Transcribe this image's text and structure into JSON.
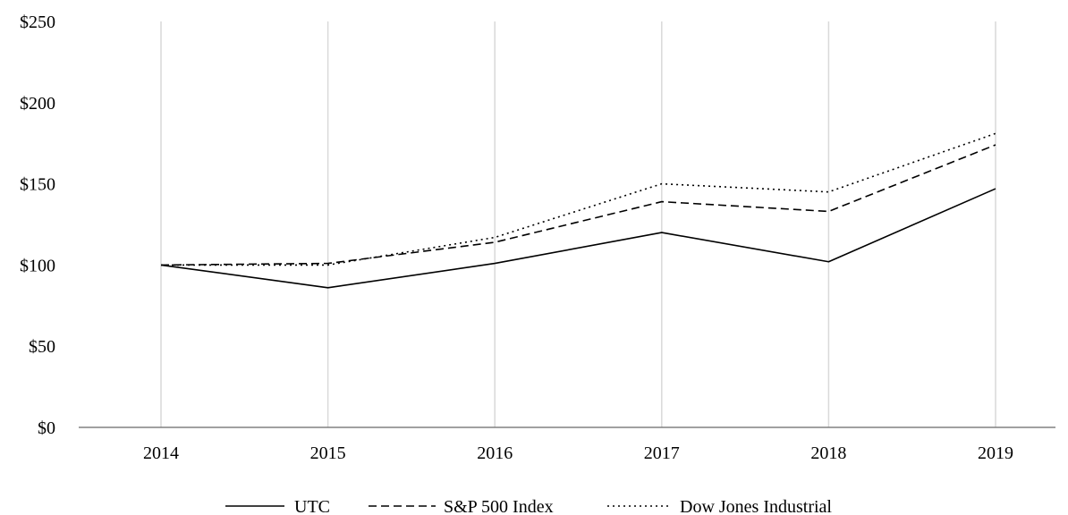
{
  "chart_data": {
    "type": "line",
    "title": "",
    "xlabel": "",
    "ylabel": "",
    "categories": [
      "2014",
      "2015",
      "2016",
      "2017",
      "2018",
      "2019"
    ],
    "y_tick_labels": [
      "$0",
      "$50",
      "$100",
      "$150",
      "$200",
      "$250"
    ],
    "y_tick_values": [
      0,
      50,
      100,
      150,
      200,
      250
    ],
    "ylim": [
      0,
      250
    ],
    "grid": {
      "vertical": true,
      "horizontal": false
    },
    "legend_position": "bottom",
    "series": [
      {
        "name": "UTC",
        "values": [
          100,
          86,
          101,
          120,
          102,
          147
        ],
        "style": "solid",
        "color": "#000000"
      },
      {
        "name": "S&P 500 Index",
        "values": [
          100,
          101,
          114,
          139,
          133,
          174
        ],
        "style": "dashed",
        "color": "#000000"
      },
      {
        "name": "Dow Jones Industrial",
        "values": [
          100,
          100,
          117,
          150,
          145,
          181
        ],
        "style": "dotted",
        "color": "#000000"
      }
    ],
    "colors": {
      "gridline": "#d9d9d9",
      "axis": "#808080",
      "series": "#000000"
    }
  }
}
